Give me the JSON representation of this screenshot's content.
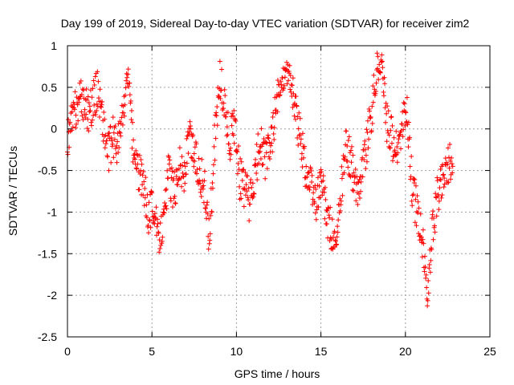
{
  "chart_data": {
    "type": "scatter",
    "title": "Day 199 of 2019, Sidereal Day-to-day VTEC variation (SDTVAR) for receiver zim2",
    "xlabel": "GPS time / hours",
    "ylabel": "SDTVAR / TECUs",
    "xlim": [
      0,
      25
    ],
    "ylim": [
      -2.5,
      1
    ],
    "xticks": [
      0,
      5,
      10,
      15,
      20,
      25
    ],
    "xtick_labels": [
      "0",
      "5",
      "10",
      "15",
      "20",
      "25"
    ],
    "yticks": [
      1,
      0.5,
      0,
      -0.5,
      -1,
      -1.5,
      -2,
      -2.5
    ],
    "ytick_labels": [
      "1",
      "0.5",
      "0",
      "-0.5",
      "-1",
      "-1.5",
      "-2",
      "-2.5"
    ],
    "grid": true,
    "marker": "+",
    "color": "#ff0000",
    "series": [
      {
        "name": "SDTVAR",
        "x": [
          0.0,
          0.3,
          0.6,
          0.9,
          1.2,
          1.5,
          1.8,
          2.1,
          2.4,
          2.7,
          3.0,
          3.3,
          3.6,
          3.9,
          4.2,
          4.5,
          4.8,
          5.1,
          5.4,
          5.7,
          6.0,
          6.3,
          6.6,
          6.9,
          7.2,
          7.5,
          7.8,
          8.1,
          8.4,
          8.7,
          9.0,
          9.3,
          9.6,
          9.9,
          10.2,
          10.5,
          10.8,
          11.1,
          11.4,
          11.7,
          12.0,
          12.3,
          12.6,
          12.9,
          13.2,
          13.5,
          13.8,
          14.1,
          14.4,
          14.7,
          15.0,
          15.3,
          15.6,
          15.9,
          16.2,
          16.5,
          16.8,
          17.1,
          17.4,
          17.7,
          18.0,
          18.3,
          18.6,
          18.9,
          19.2,
          19.5,
          19.8,
          20.1,
          20.4,
          20.7,
          21.0,
          21.3,
          21.6,
          21.9,
          22.2,
          22.5,
          22.8
        ],
        "y": [
          -0.1,
          0.1,
          0.3,
          0.35,
          0.2,
          0.3,
          0.5,
          0.1,
          -0.3,
          -0.1,
          -0.2,
          0.2,
          0.7,
          -0.3,
          -0.5,
          -0.7,
          -1.0,
          -0.9,
          -1.35,
          -1.1,
          -0.5,
          -0.8,
          -0.4,
          -0.6,
          -0.1,
          -0.3,
          -0.5,
          -0.7,
          -1.3,
          -0.2,
          0.6,
          0.3,
          -0.2,
          0.1,
          -0.6,
          -0.7,
          -0.9,
          -0.6,
          -0.1,
          -0.4,
          -0.2,
          0.2,
          0.5,
          0.7,
          0.6,
          0.2,
          -0.1,
          -0.5,
          -0.7,
          -0.9,
          -0.6,
          -1.0,
          -1.2,
          -1.45,
          -0.7,
          -0.2,
          -0.4,
          -0.8,
          -0.5,
          -0.2,
          0.2,
          0.7,
          0.8,
          0.1,
          -0.1,
          -0.3,
          0.0,
          0.2,
          -0.7,
          -1.0,
          -1.3,
          -2.05,
          -1.2,
          -0.8,
          -0.6,
          -0.4,
          -0.45
        ],
        "band_halfwidth": [
          0.25,
          0.25,
          0.25,
          0.25,
          0.25,
          0.25,
          0.25,
          0.25,
          0.25,
          0.25,
          0.25,
          0.25,
          0.1,
          0.25,
          0.25,
          0.25,
          0.25,
          0.25,
          0.15,
          0.2,
          0.25,
          0.25,
          0.25,
          0.25,
          0.25,
          0.25,
          0.25,
          0.25,
          0.25,
          0.25,
          0.25,
          0.25,
          0.25,
          0.25,
          0.25,
          0.25,
          0.25,
          0.25,
          0.25,
          0.25,
          0.25,
          0.25,
          0.25,
          0.1,
          0.2,
          0.25,
          0.25,
          0.25,
          0.25,
          0.25,
          0.25,
          0.25,
          0.25,
          0.1,
          0.25,
          0.25,
          0.25,
          0.25,
          0.25,
          0.25,
          0.25,
          0.25,
          0.1,
          0.25,
          0.25,
          0.25,
          0.25,
          0.25,
          0.25,
          0.25,
          0.25,
          0.1,
          0.25,
          0.25,
          0.25,
          0.25,
          0.25
        ]
      }
    ]
  }
}
